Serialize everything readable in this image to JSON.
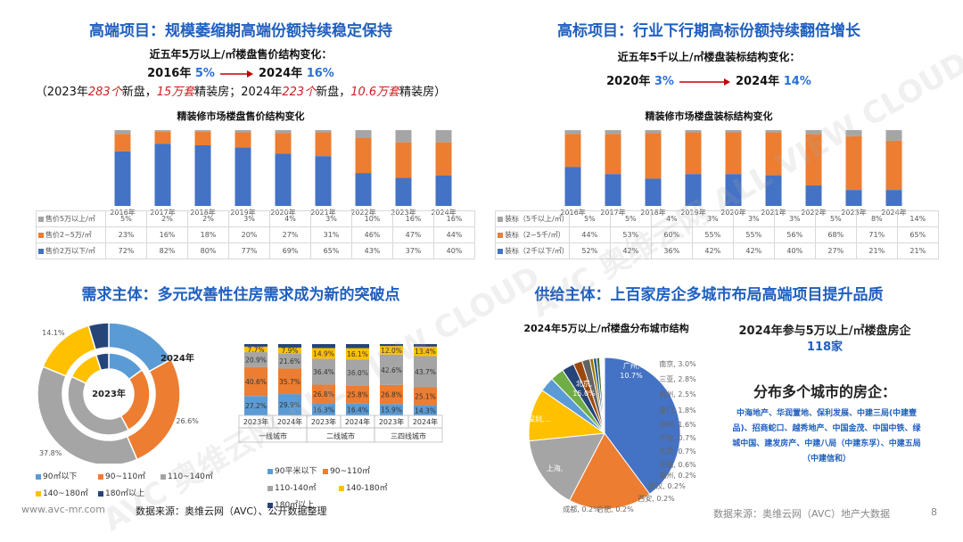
{
  "colors": {
    "blue": "#4472c4",
    "orange": "#ed7d31",
    "gray": "#a5a5a5",
    "yellow": "#ffc000",
    "lightblue": "#5b9bd5",
    "navy": "#264478"
  },
  "q1": {
    "title": "高端项目：规模萎缩期高端份额持续稳定保持",
    "sub": "近五年5万以上/㎡楼盘售价结构变化：",
    "l2a": "2016年 ",
    "l2b": "5%",
    "l2c": " 2024年 ",
    "l2d": "16%",
    "l3a": "（2023年",
    "l3b": "283个",
    "l3c": "新盘，",
    "l3d": "15万套",
    "l3e": "精装房；2024年",
    "l3f": "223个",
    "l3g": "新盘，",
    "l3h": "10.6万套",
    "l3i": "精装房）",
    "caption": "精装修市场楼盘售价结构变化"
  },
  "q2": {
    "title": "高标项目：行业下行期高标份额持续翻倍增长",
    "sub": "近五年5千以上/㎡楼盘装标结构变化：",
    "l2a": "2020年 ",
    "l2b": "3%",
    "l2c": " 2024年 ",
    "l2d": "14%",
    "caption": "精装修市场楼盘装标结构变化"
  },
  "q3": {
    "title": "需求主体：多元改善性住房需求成为新的突破点"
  },
  "q4": {
    "title": "供给主体：上百家房企多城市布局高端项目提升品质",
    "pie_caption": "2024年5万以上/㎡楼盘分布城市结构",
    "firms_title": "2024年参与5万以上/㎡楼盘房企",
    "firms_count": "118家",
    "multi_title": "分布多个城市的房企：",
    "multi_text": "中海地产、华润置地、保利发展、中建三局(中建壹品)、招商蛇口、越秀地产、中国金茂、中国中铁、绿城中国、建发房产、中建八局（中建东孚）、中建五局（中建信和）"
  },
  "footer": {
    "site": "www.avc-mr.com",
    "source_left": "数据来源：奥维云网（AVC）、公开数据整理",
    "source_right": "数据来源：奥维云网（AVC）地产大数据",
    "page": "8"
  },
  "watermark": "AVC 奥维云网 ALL VIEW CLOUD",
  "chart_data": [
    {
      "type": "bar",
      "stacked": true,
      "title": "精装修市场楼盘售价结构变化",
      "categories": [
        "2016年",
        "2017年",
        "2018年",
        "2019年",
        "2020年",
        "2021年",
        "2022年",
        "2023年",
        "2024年"
      ],
      "series": [
        {
          "name": "售价5万以上/㎡",
          "values": [
            5,
            2,
            2,
            3,
            4,
            3,
            10,
            16,
            16
          ],
          "labels": [
            "5%",
            "2%",
            "2%",
            "3%",
            "4%",
            "3%",
            "10%",
            "16%",
            "16%"
          ]
        },
        {
          "name": "售价2~5万/㎡",
          "values": [
            23,
            16,
            18,
            20,
            27,
            31,
            46,
            47,
            44
          ],
          "labels": [
            "23%",
            "16%",
            "18%",
            "20%",
            "27%",
            "31%",
            "46%",
            "47%",
            "44%"
          ]
        },
        {
          "name": "售价2万以下/㎡",
          "values": [
            72,
            82,
            80,
            77,
            69,
            65,
            43,
            37,
            40
          ],
          "labels": [
            "72%",
            "82%",
            "80%",
            "77%",
            "69%",
            "65%",
            "43%",
            "37%",
            "40%"
          ]
        }
      ]
    },
    {
      "type": "bar",
      "stacked": true,
      "title": "精装修市场楼盘装标结构变化",
      "categories": [
        "2016年",
        "2017年",
        "2018年",
        "2019年",
        "2020年",
        "2021年",
        "2022年",
        "2023年",
        "2024年"
      ],
      "series": [
        {
          "name": "装标（5千以上/㎡）",
          "values": [
            5,
            5,
            4,
            3,
            3,
            3,
            5,
            8,
            14
          ],
          "labels": [
            "5%",
            "5%",
            "4%",
            "3%",
            "3%",
            "3%",
            "5%",
            "8%",
            "14%"
          ]
        },
        {
          "name": "装标（2~5千/㎡）",
          "values": [
            44,
            53,
            60,
            55,
            55,
            56,
            68,
            71,
            65
          ],
          "labels": [
            "44%",
            "53%",
            "60%",
            "55%",
            "55%",
            "56%",
            "68%",
            "71%",
            "65%"
          ]
        },
        {
          "name": "装标（2千以下/㎡）",
          "values": [
            52,
            42,
            36,
            42,
            42,
            40,
            27,
            21,
            21
          ],
          "labels": [
            "52%",
            "42%",
            "36%",
            "42%",
            "42%",
            "40%",
            "27%",
            "21%",
            "21%"
          ]
        }
      ]
    },
    {
      "type": "pie",
      "variant": "double-donut",
      "segments": [
        "90㎡以下",
        "90~110㎡",
        "110~140㎡",
        "140~180㎡",
        "180㎡以上"
      ],
      "outer": {
        "name": "2024年",
        "values": [
          16.9,
          26.6,
          37.8,
          14.1,
          4.6
        ],
        "labels": [
          "16.9%",
          "26.6%",
          "37.8%",
          "14.1%",
          ""
        ]
      },
      "inner": {
        "name": "2023年",
        "values": [
          15,
          27,
          40,
          13,
          5
        ]
      }
    },
    {
      "type": "bar",
      "stacked": true,
      "categories": [
        "2023年",
        "2024年",
        "2023年",
        "2024年",
        "2023年",
        "2024年"
      ],
      "groups": [
        "一线城市",
        "二线城市",
        "三四线城市"
      ],
      "series": [
        {
          "name": "90平米以下",
          "values": [
            27.2,
            29.9,
            16.3,
            16.4,
            15.9,
            14.3
          ],
          "labels": [
            "27.2%",
            "29.9%",
            "16.3%",
            "16.4%",
            "15.9%",
            "14.3%"
          ]
        },
        {
          "name": "90~110㎡",
          "values": [
            40.6,
            35.7,
            26.8,
            25.8,
            26.8,
            25.1
          ],
          "labels": [
            "40.6%",
            "35.7%",
            "26.8%",
            "25.8%",
            "26.8%",
            "25.1%"
          ]
        },
        {
          "name": "110-140㎡",
          "values": [
            20.9,
            21.6,
            36.4,
            36.0,
            42.6,
            43.7
          ],
          "labels": [
            "20.9%",
            "21.6%",
            "36.4%",
            "36.0%",
            "42.6%",
            "43.7%"
          ]
        },
        {
          "name": "140-180㎡",
          "values": [
            7.7,
            7.9,
            14.9,
            16.1,
            12.0,
            13.4
          ],
          "labels": [
            "7.7%",
            "7.9%",
            "14.9%",
            "16.1%",
            "12.0%",
            "13.4%"
          ]
        },
        {
          "name": "180㎡以上",
          "values": [
            3.6,
            4.9,
            5.6,
            5.7,
            2.7,
            3.5
          ],
          "labels": [
            "",
            "",
            "",
            "",
            "",
            ""
          ]
        }
      ]
    },
    {
      "type": "pie",
      "slices": [
        {
          "name": "上海",
          "value": 38.0,
          "label": "上海,"
        },
        {
          "name": "深圳",
          "value": 17.0,
          "label": "深圳,..."
        },
        {
          "name": "北京",
          "value": 15.0,
          "label": "北京,\n15.0%"
        },
        {
          "name": "广州",
          "value": 10.7,
          "label": "广州,\n10.7%"
        },
        {
          "name": "南京",
          "value": 3.0,
          "label": "南京, 3.0%"
        },
        {
          "name": "三亚",
          "value": 2.8,
          "label": "三亚, 2.8%"
        },
        {
          "name": "杭州",
          "value": 2.5,
          "label": "杭州, 2.5%"
        },
        {
          "name": "厦门",
          "value": 1.8,
          "label": "厦门, 1.8%"
        },
        {
          "name": "苏州",
          "value": 1.6,
          "label": "苏州, 1.6%"
        },
        {
          "name": "宁波",
          "value": 0.7,
          "label": "宁波, 0.7%"
        },
        {
          "name": "东莞",
          "value": 0.7,
          "label": "东莞, 0.7%"
        },
        {
          "name": "无锡",
          "value": 0.6,
          "label": "无锡, 0.6%"
        },
        {
          "name": "福州",
          "value": 0.2,
          "label": "福州, 0.2%"
        },
        {
          "name": "武汉",
          "value": 0.2,
          "label": "武汉, 0.2%"
        },
        {
          "name": "西安",
          "value": 0.2,
          "label": "西安, 0.2%"
        },
        {
          "name": "合肥",
          "value": 0.2,
          "label": "合肥, 0.2%"
        },
        {
          "name": "成都",
          "value": 0.2,
          "label": "成都, 0.2%"
        }
      ]
    }
  ]
}
